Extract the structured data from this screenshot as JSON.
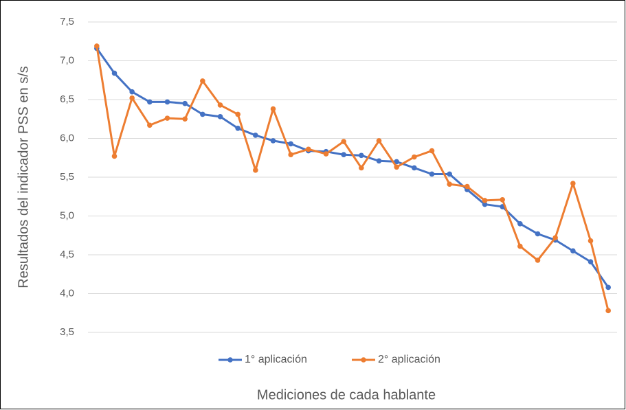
{
  "chart_data": {
    "type": "line",
    "y_label": "Resultados del indicador PSS en s/s",
    "x_label": "Mediciones de cada hablante",
    "categories": [
      null,
      null,
      null,
      null,
      null,
      null,
      null,
      null,
      null,
      null,
      null,
      null,
      null,
      null,
      null,
      null,
      null,
      null,
      null,
      null,
      null,
      null,
      null,
      null,
      null,
      null,
      null,
      null,
      null,
      null
    ],
    "series": [
      {
        "name": "1° aplicación",
        "color": "#4472c4",
        "values": [
          7.16,
          6.84,
          6.6,
          6.47,
          6.47,
          6.45,
          6.31,
          6.28,
          6.13,
          6.04,
          5.97,
          5.93,
          5.84,
          5.83,
          5.79,
          5.78,
          5.71,
          5.7,
          5.62,
          5.54,
          5.54,
          5.34,
          5.15,
          5.12,
          4.9,
          4.77,
          4.69,
          4.55,
          4.41,
          4.08
        ]
      },
      {
        "name": "2° aplicación",
        "color": "#ed7d31",
        "values": [
          7.19,
          5.77,
          6.52,
          6.17,
          6.26,
          6.25,
          6.74,
          6.43,
          6.31,
          5.59,
          6.38,
          5.79,
          5.86,
          5.8,
          5.96,
          5.62,
          5.97,
          5.63,
          5.76,
          5.84,
          5.41,
          5.38,
          5.2,
          5.21,
          4.61,
          4.43,
          4.72,
          5.42,
          4.68,
          3.78
        ]
      }
    ],
    "ylim": [
      3.5,
      7.5
    ],
    "yticks": [
      {
        "value": 3.5,
        "label": "3,5"
      },
      {
        "value": 4.0,
        "label": "4,0"
      },
      {
        "value": 4.5,
        "label": "4,5"
      },
      {
        "value": 5.0,
        "label": "5,0"
      },
      {
        "value": 5.5,
        "label": "5,5"
      },
      {
        "value": 6.0,
        "label": "6,0"
      },
      {
        "value": 6.5,
        "label": "6,5"
      },
      {
        "value": 7.0,
        "label": "7,0"
      },
      {
        "value": 7.5,
        "label": "7,5"
      }
    ],
    "grid": true,
    "legend": "bottom"
  }
}
